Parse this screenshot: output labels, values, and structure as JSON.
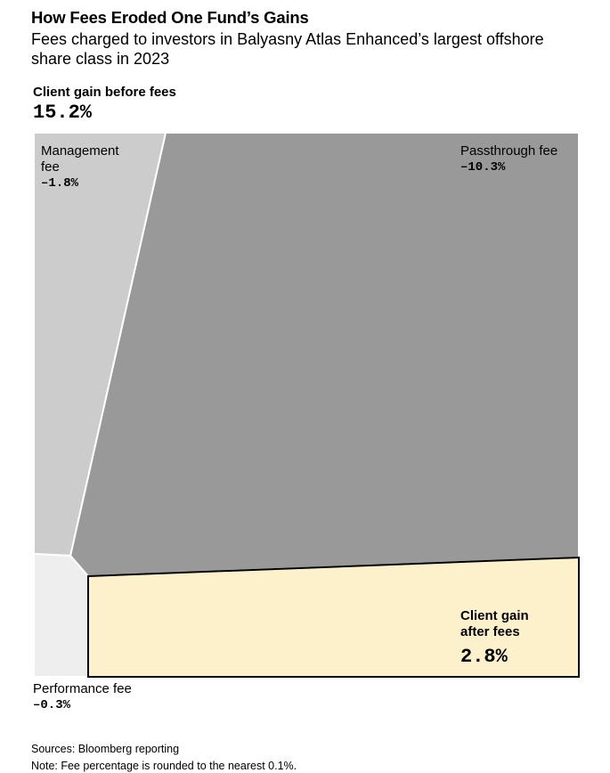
{
  "header": {
    "title": "How Fees Eroded One Fund’s Gains",
    "subtitle": "Fees charged to investors in Balyasny Atlas Enhanced’s largest offshore share class in 2023"
  },
  "chart_data": {
    "type": "treemap",
    "total": {
      "label": "Client gain before fees",
      "value": 15.2,
      "display": "15.2%"
    },
    "segments": [
      {
        "name": "Management fee",
        "value": -1.8,
        "display": "–1.8%",
        "color": "#cccccc"
      },
      {
        "name": "Passthrough fee",
        "value": -10.3,
        "display": "–10.3%",
        "color": "#999999"
      },
      {
        "name": "Performance fee",
        "value": -0.3,
        "display": "–0.3%",
        "color": "#eeeeee"
      },
      {
        "name_line1": "Client gain",
        "name_line2": "after fees",
        "value": 2.8,
        "display": "2.8%",
        "color": "#fdf1cc",
        "border": "#000000"
      }
    ]
  },
  "footer": {
    "sources": "Sources: Bloomberg reporting",
    "note": "Note: Fee percentage is rounded to the nearest 0.1%."
  }
}
